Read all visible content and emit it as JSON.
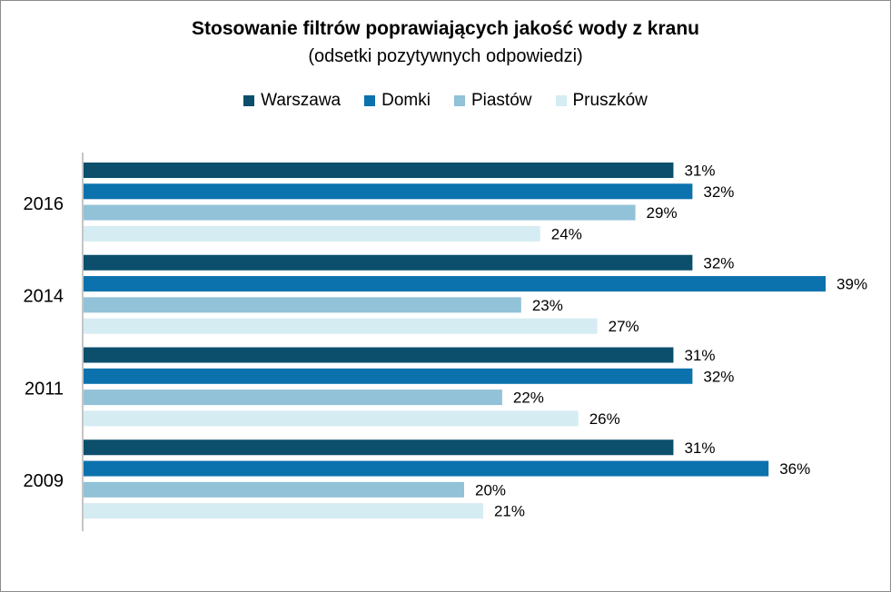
{
  "chart_data": {
    "type": "bar",
    "orientation": "horizontal",
    "title": "Stosowanie filtrów poprawiających  jakość wody z kranu",
    "subtitle": "(odsetki pozytywnych odpowiedzi)",
    "categories": [
      "2016",
      "2014",
      "2011",
      "2009"
    ],
    "series": [
      {
        "name": "Warszawa",
        "color": "#0b4f6c",
        "values": [
          31,
          32,
          31,
          31
        ]
      },
      {
        "name": "Domki",
        "color": "#0c72ad",
        "values": [
          32,
          39,
          32,
          36
        ]
      },
      {
        "name": "Piastów",
        "color": "#92c2d8",
        "values": [
          29,
          23,
          22,
          20
        ]
      },
      {
        "name": "Pruszków",
        "color": "#d5ecf2",
        "values": [
          24,
          27,
          26,
          21
        ]
      }
    ],
    "value_suffix": "%",
    "xlim": [
      0,
      40
    ],
    "grid": false,
    "legend_position": "top"
  }
}
